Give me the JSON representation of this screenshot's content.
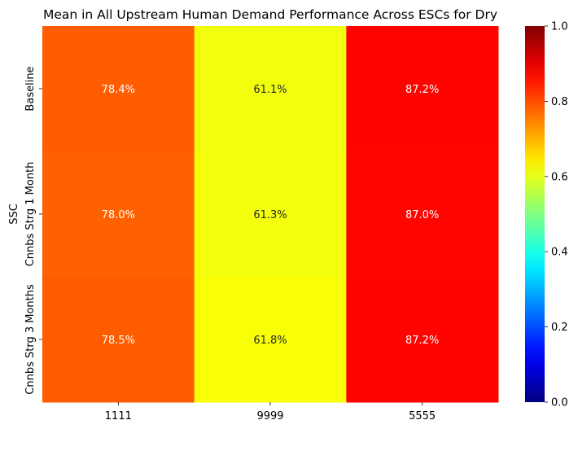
{
  "chart_data": {
    "type": "heatmap",
    "title": "Mean in All Upstream Human Demand Performance Across ESCs for Dry",
    "xlabel": "",
    "ylabel": "SSC",
    "x_categories": [
      "1111",
      "9999",
      "5555"
    ],
    "y_categories": [
      "Baseline",
      "Cnnbs Strg 1 Month",
      "Cnnbs Strg 3 Months"
    ],
    "values": [
      [
        0.784,
        0.611,
        0.872
      ],
      [
        0.78,
        0.613,
        0.87
      ],
      [
        0.785,
        0.618,
        0.872
      ]
    ],
    "cell_labels": [
      [
        "78.4%",
        "61.1%",
        "87.2%"
      ],
      [
        "78.0%",
        "61.3%",
        "87.0%"
      ],
      [
        "78.5%",
        "61.8%",
        "87.2%"
      ]
    ],
    "colormap": "jet",
    "vmin": 0,
    "vmax": 1,
    "colorbar_ticks": [
      "0.0",
      "0.2",
      "0.4",
      "0.6",
      "0.8",
      "1.0"
    ]
  }
}
